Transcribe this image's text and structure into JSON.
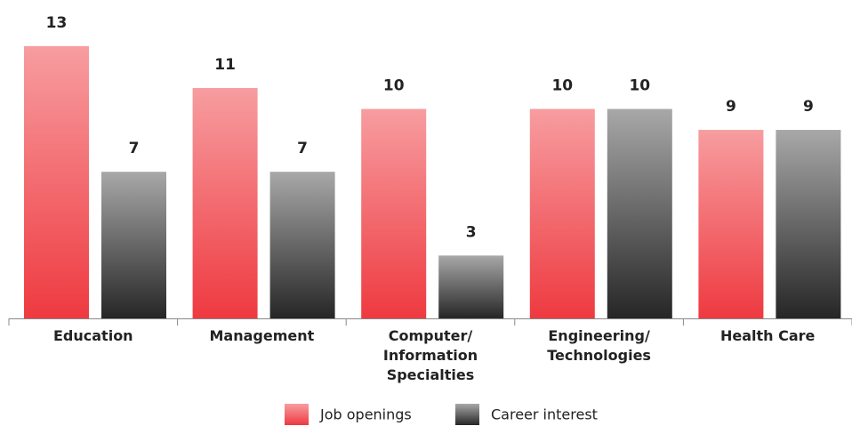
{
  "chart_data": {
    "type": "bar",
    "categories": [
      "Education",
      "Management",
      "Computer/\nInformation\nSpecialties",
      "Engineering/\nTechnologies",
      "Health Care"
    ],
    "series": [
      {
        "name": "Job openings",
        "color": "#ee3a40",
        "values": [
          13,
          11,
          10,
          10,
          9
        ]
      },
      {
        "name": "Career interest",
        "color": "#262626",
        "values": [
          7,
          7,
          3,
          10,
          9
        ]
      }
    ],
    "legend": "bottom"
  }
}
